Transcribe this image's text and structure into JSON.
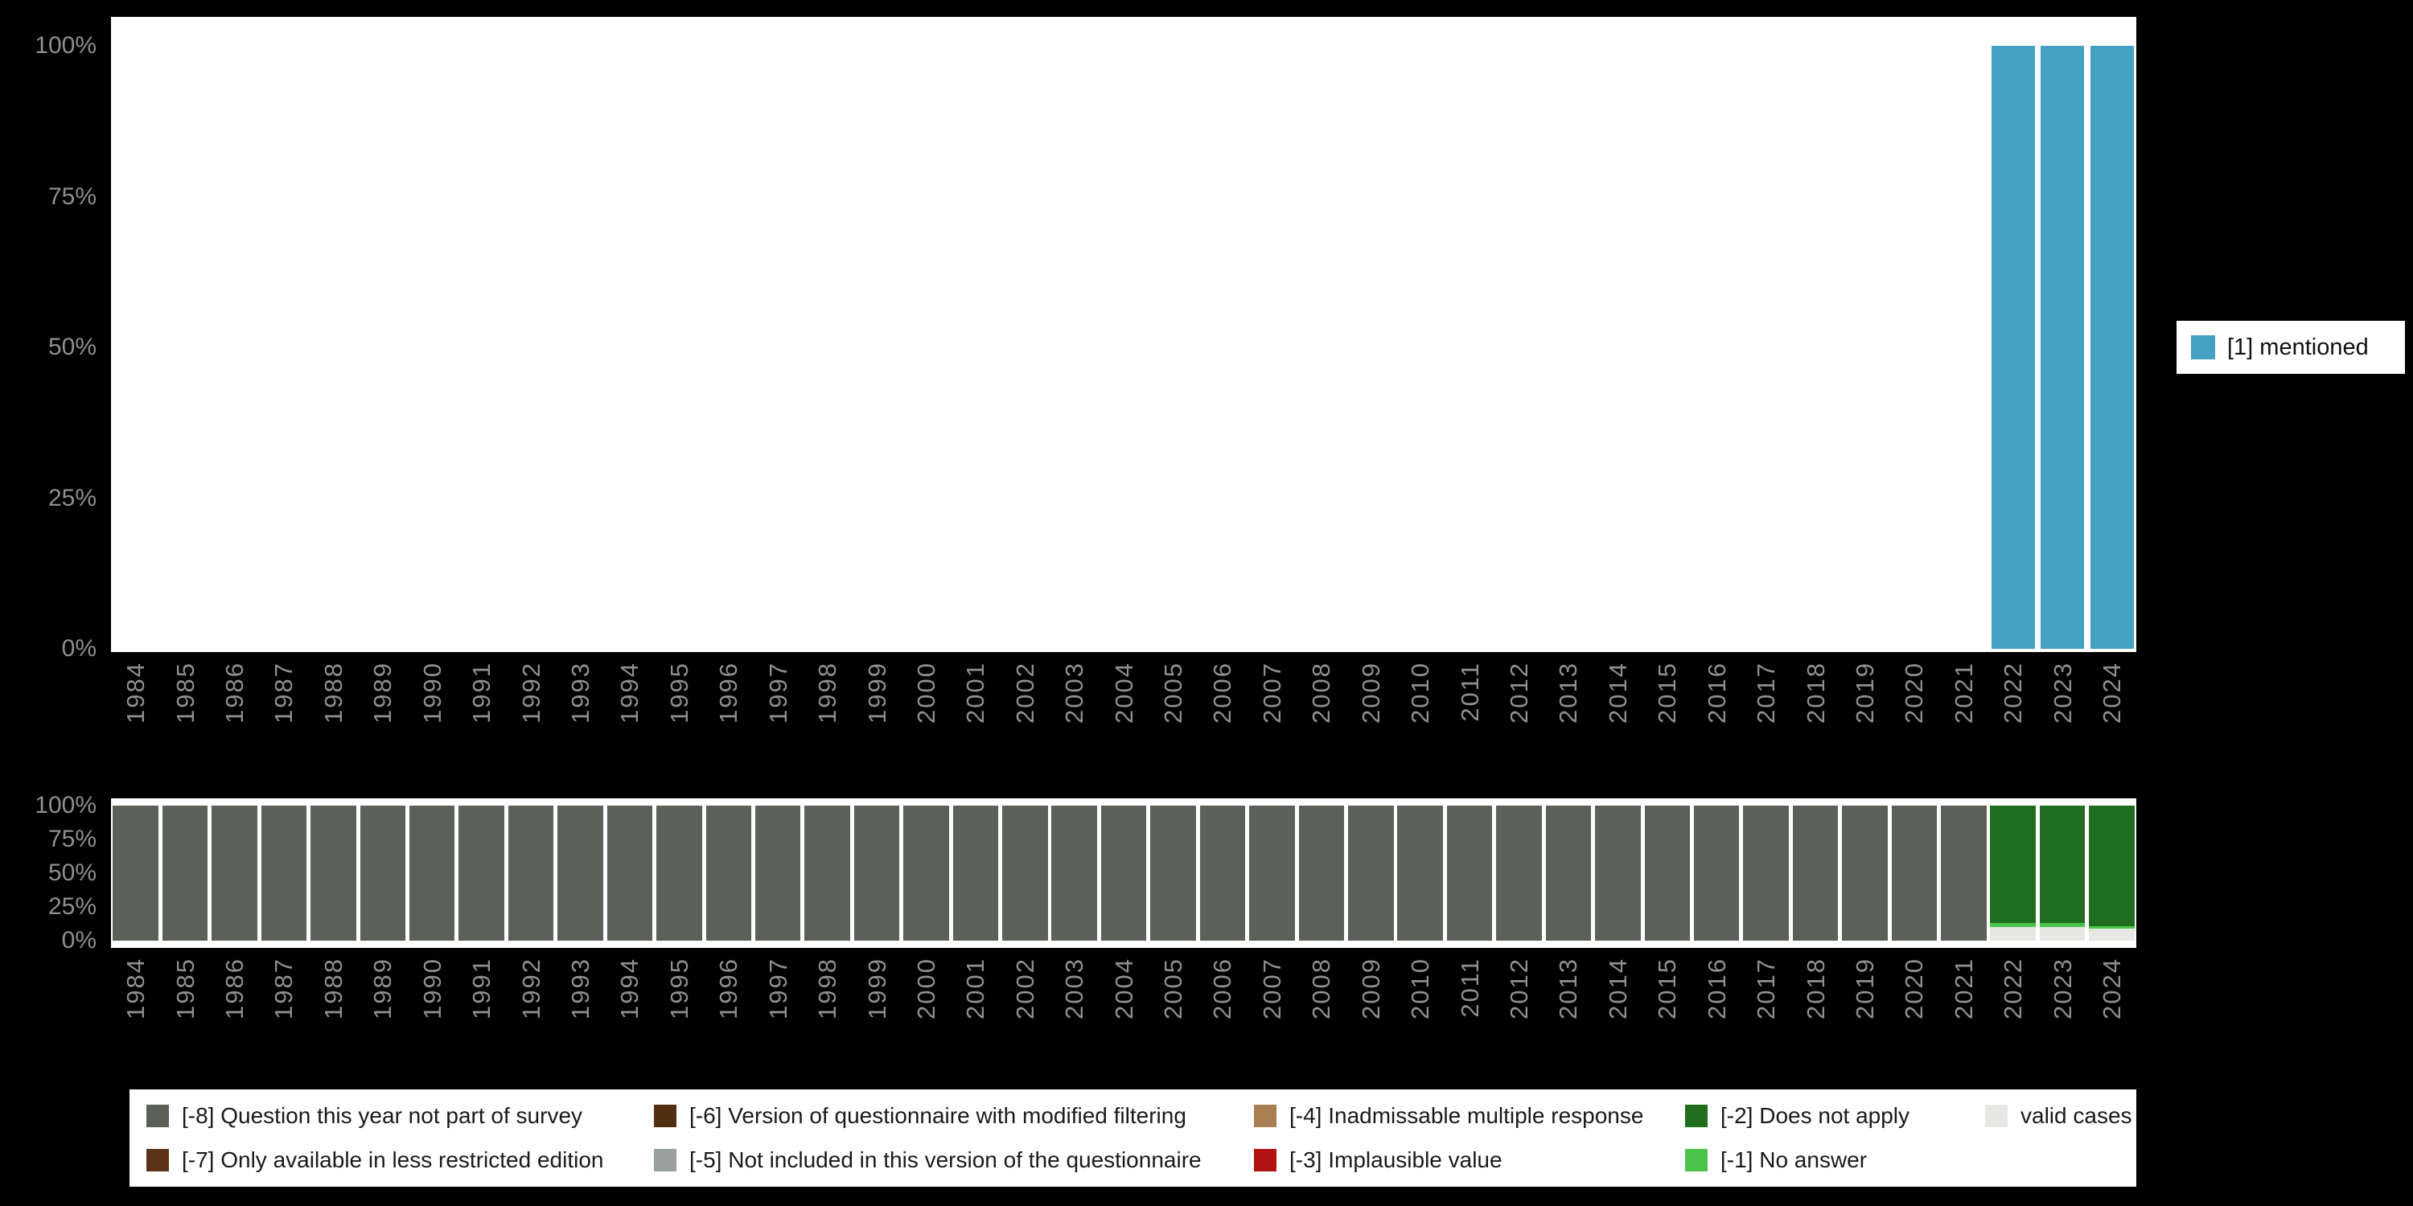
{
  "colors": {
    "background": "#000000",
    "panel": "#ffffff",
    "axis_text": "#8f8f8f",
    "legend_text": "#1a1a1a",
    "mentioned": "#45a1c1",
    "na8": "#5b6159",
    "na7": "#5a3317",
    "na6": "#512f10",
    "na5": "#9aa09e",
    "na4": "#a87e52",
    "na3": "#b11212",
    "na2": "#1e6e1e",
    "na1": "#4cc44c",
    "valid": "#e7e7e3"
  },
  "chart_data": [
    {
      "type": "bar",
      "title": "",
      "xlabel": "",
      "ylabel": "",
      "ylim": [
        0,
        100
      ],
      "grid": false,
      "legend_position": "right",
      "yticks": [
        {
          "label": "100%",
          "value": 100
        },
        {
          "label": "75%",
          "value": 75
        },
        {
          "label": "50%",
          "value": 50
        },
        {
          "label": "25%",
          "value": 25
        },
        {
          "label": "0%",
          "value": 0
        }
      ],
      "categories": [
        "1984",
        "1985",
        "1986",
        "1987",
        "1988",
        "1989",
        "1990",
        "1991",
        "1992",
        "1993",
        "1994",
        "1995",
        "1996",
        "1997",
        "1998",
        "1999",
        "2000",
        "2001",
        "2002",
        "2003",
        "2004",
        "2005",
        "2006",
        "2007",
        "2008",
        "2009",
        "2010",
        "2011",
        "2012",
        "2013",
        "2014",
        "2015",
        "2016",
        "2017",
        "2018",
        "2019",
        "2020",
        "2021",
        "2022",
        "2023",
        "2024"
      ],
      "series": [
        {
          "name": "[1] mentioned",
          "color_key": "mentioned",
          "values": [
            0,
            0,
            0,
            0,
            0,
            0,
            0,
            0,
            0,
            0,
            0,
            0,
            0,
            0,
            0,
            0,
            0,
            0,
            0,
            0,
            0,
            0,
            0,
            0,
            0,
            0,
            0,
            0,
            0,
            0,
            0,
            0,
            0,
            0,
            0,
            0,
            0,
            0,
            100,
            100,
            100
          ]
        }
      ]
    },
    {
      "type": "stacked-bar",
      "title": "",
      "xlabel": "",
      "ylabel": "",
      "ylim": [
        0,
        100
      ],
      "grid": false,
      "legend_position": "bottom",
      "yticks": [
        {
          "label": "100%",
          "value": 100
        },
        {
          "label": "75%",
          "value": 75
        },
        {
          "label": "50%",
          "value": 50
        },
        {
          "label": "25%",
          "value": 25
        },
        {
          "label": "0%",
          "value": 0
        }
      ],
      "categories": [
        "1984",
        "1985",
        "1986",
        "1987",
        "1988",
        "1989",
        "1990",
        "1991",
        "1992",
        "1993",
        "1994",
        "1995",
        "1996",
        "1997",
        "1998",
        "1999",
        "2000",
        "2001",
        "2002",
        "2003",
        "2004",
        "2005",
        "2006",
        "2007",
        "2008",
        "2009",
        "2010",
        "2011",
        "2012",
        "2013",
        "2014",
        "2015",
        "2016",
        "2017",
        "2018",
        "2019",
        "2020",
        "2021",
        "2022",
        "2023",
        "2024"
      ],
      "series": [
        {
          "name": "valid cases",
          "color_key": "valid",
          "values": [
            0,
            0,
            0,
            0,
            0,
            0,
            0,
            0,
            0,
            0,
            0,
            0,
            0,
            0,
            0,
            0,
            0,
            0,
            0,
            0,
            0,
            0,
            0,
            0,
            0,
            0,
            0,
            0,
            0,
            0,
            0,
            0,
            0,
            0,
            0,
            0,
            0,
            0,
            10,
            10,
            9
          ]
        },
        {
          "name": "[-1] No answer",
          "color_key": "na1",
          "values": [
            0,
            0,
            0,
            0,
            0,
            0,
            0,
            0,
            0,
            0,
            0,
            0,
            0,
            0,
            0,
            0,
            0,
            0,
            0,
            0,
            0,
            0,
            0,
            0,
            0,
            0,
            0,
            0,
            0,
            0,
            0,
            0,
            0,
            0,
            0,
            0,
            0,
            0,
            3,
            3,
            2
          ]
        },
        {
          "name": "[-2] Does not apply",
          "color_key": "na2",
          "values": [
            0,
            0,
            0,
            0,
            0,
            0,
            0,
            0,
            0,
            0,
            0,
            0,
            0,
            0,
            0,
            0,
            0,
            0,
            0,
            0,
            0,
            0,
            0,
            0,
            0,
            0,
            0,
            0,
            0,
            0,
            0,
            0,
            0,
            0,
            0,
            0,
            0,
            0,
            87,
            87,
            89
          ]
        },
        {
          "name": "[-8] Question this year not part of survey",
          "color_key": "na8",
          "values": [
            100,
            100,
            100,
            100,
            100,
            100,
            100,
            100,
            100,
            100,
            100,
            100,
            100,
            100,
            100,
            100,
            100,
            100,
            100,
            100,
            100,
            100,
            100,
            100,
            100,
            100,
            100,
            100,
            100,
            100,
            100,
            100,
            100,
            100,
            100,
            100,
            100,
            100,
            0,
            0,
            0
          ]
        }
      ]
    }
  ],
  "legend_right": {
    "items": [
      {
        "label": "[1] mentioned",
        "color_key": "mentioned"
      }
    ]
  },
  "legend_bottom": {
    "items_column_major": [
      {
        "label": "[-8] Question this year not part of survey",
        "color_key": "na8"
      },
      {
        "label": "[-7] Only available in less restricted edition",
        "color_key": "na7"
      },
      {
        "label": "[-6] Version of questionnaire with modified filtering",
        "color_key": "na6"
      },
      {
        "label": "[-5] Not included in this version of the questionnaire",
        "color_key": "na5"
      },
      {
        "label": "[-4] Inadmissable multiple response",
        "color_key": "na4"
      },
      {
        "label": "[-3] Implausible value",
        "color_key": "na3"
      },
      {
        "label": "[-2] Does not apply",
        "color_key": "na2"
      },
      {
        "label": "[-1] No answer",
        "color_key": "na1"
      },
      {
        "label": "valid cases",
        "color_key": "valid"
      }
    ]
  }
}
